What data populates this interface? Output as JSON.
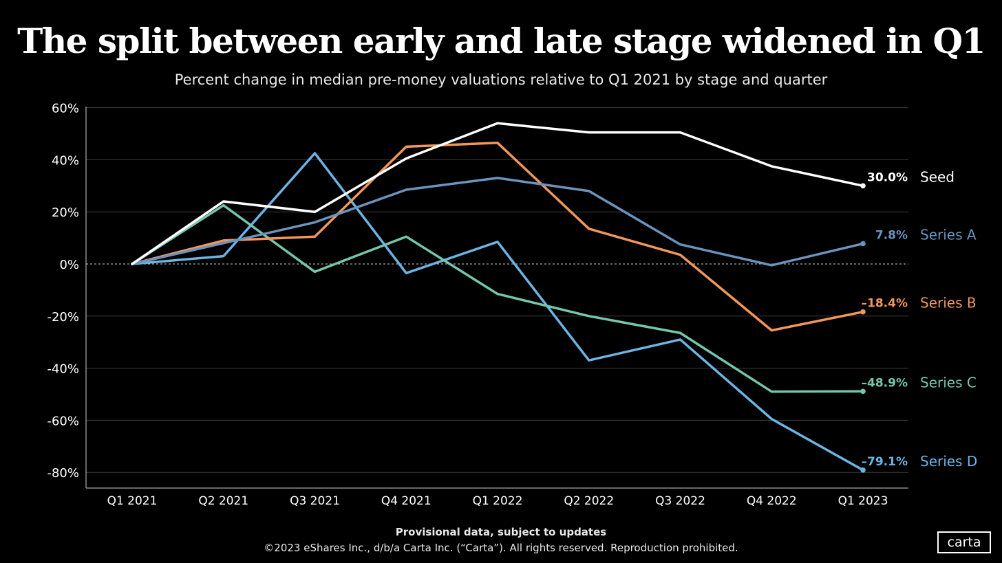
{
  "chart_data": {
    "type": "line",
    "title": "The split between early and late stage widened in Q1",
    "subtitle": "Percent change in median pre-money valuations relative to Q1 2021 by stage and quarter",
    "categories": [
      "Q1 2021",
      "Q2 2021",
      "Q3 2021",
      "Q4 2021",
      "Q1 2022",
      "Q2 2022",
      "Q3 2022",
      "Q4 2022",
      "Q1 2023"
    ],
    "y_ticks": [
      60,
      40,
      20,
      0,
      -20,
      -40,
      -60,
      -80
    ],
    "y_tick_labels": [
      "60%",
      "40%",
      "20%",
      "0%",
      "-20%",
      "-40%",
      "-60%",
      "-80%"
    ],
    "ylim": [
      -86,
      62
    ],
    "grid": true,
    "series": [
      {
        "name": "Series D",
        "color": "#6cb4e4",
        "values": [
          0,
          3,
          42.5,
          -3.5,
          8.5,
          -37,
          -29,
          -59.5,
          -79.1
        ],
        "end_label": "–79.1%"
      },
      {
        "name": "Series C",
        "color": "#74c7ae",
        "values": [
          0,
          22.5,
          -3,
          10.5,
          -11.5,
          -20,
          -26.5,
          -49,
          -48.9
        ],
        "end_label": "–48.9%"
      },
      {
        "name": "Series B",
        "color": "#f2975a",
        "values": [
          0,
          9,
          10.5,
          45,
          46.5,
          13.5,
          3.5,
          -25.5,
          -18.4
        ],
        "end_label": "–18.4%"
      },
      {
        "name": "Series A",
        "color": "#6a94be",
        "values": [
          0,
          8,
          16,
          28.5,
          33,
          28,
          7.5,
          -0.5,
          7.8
        ],
        "end_label": "7.8%"
      },
      {
        "name": "Seed",
        "color": "#ffffff",
        "values": [
          0,
          24,
          20,
          40.5,
          54,
          50.5,
          50.5,
          37.5,
          30.0
        ],
        "end_label": "30.0%"
      }
    ]
  },
  "footer": {
    "note": "Provisional data, subject to updates",
    "copyright": "©2023 eShares Inc., d/b/a Carta Inc. (“Carta”). All rights reserved. Reproduction prohibited."
  },
  "logo": {
    "text": "carta"
  }
}
